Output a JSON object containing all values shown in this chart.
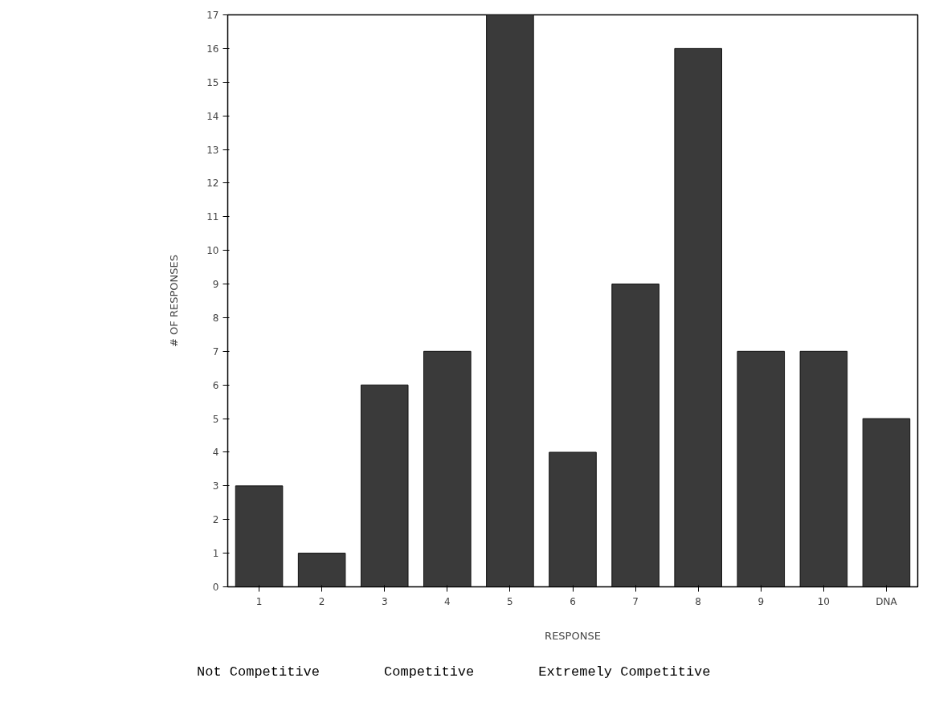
{
  "chart_data": {
    "type": "bar",
    "xlabel": "RESPONSE",
    "ylabel": "# OF RESPONSES",
    "categories": [
      "1",
      "2",
      "3",
      "4",
      "5",
      "6",
      "7",
      "8",
      "9",
      "10",
      "DNA"
    ],
    "values": [
      3,
      1,
      6,
      7,
      17,
      4,
      9,
      16,
      7,
      7,
      5
    ],
    "color": "#3a3a3a",
    "ylim": [
      0,
      17
    ],
    "yticks": [
      0,
      1,
      2,
      3,
      4,
      5,
      6,
      7,
      8,
      9,
      10,
      11,
      12,
      13,
      14,
      15,
      16,
      17
    ],
    "grid": false,
    "annotations": [
      "Not Competitive",
      "Competitive",
      "Extremely Competitive"
    ]
  }
}
